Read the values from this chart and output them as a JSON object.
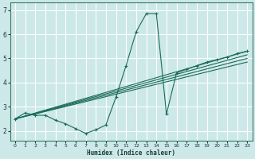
{
  "xlabel": "Humidex (Indice chaleur)",
  "bg_color": "#cce8e8",
  "grid_color": "#ffffff",
  "line_color": "#1a6b5a",
  "xlim": [
    -0.5,
    23.5
  ],
  "ylim": [
    1.6,
    7.3
  ],
  "yticks": [
    2,
    3,
    4,
    5,
    6,
    7
  ],
  "xticks": [
    0,
    1,
    2,
    3,
    4,
    5,
    6,
    7,
    8,
    9,
    10,
    11,
    12,
    13,
    14,
    15,
    16,
    17,
    18,
    19,
    20,
    21,
    22,
    23
  ],
  "series1_x": [
    0,
    1,
    2,
    3,
    4,
    5,
    6,
    7,
    8,
    9,
    10,
    11,
    12,
    13,
    14,
    15,
    16,
    17,
    18,
    19,
    20,
    21,
    22,
    23
  ],
  "series1_y": [
    2.5,
    2.75,
    2.65,
    2.65,
    2.45,
    2.3,
    2.1,
    1.9,
    2.05,
    2.25,
    3.4,
    4.7,
    6.1,
    6.85,
    6.85,
    2.7,
    4.4,
    4.55,
    4.7,
    4.85,
    4.95,
    5.05,
    5.2,
    5.3
  ],
  "lines": [
    {
      "x0": 0.0,
      "y0": 2.5,
      "x1": 23,
      "y1": 5.3
    },
    {
      "x0": 0.0,
      "y0": 2.5,
      "x1": 23,
      "y1": 5.15
    },
    {
      "x0": 0.0,
      "y0": 2.5,
      "x1": 23,
      "y1": 5.0
    },
    {
      "x0": 0.0,
      "y0": 2.5,
      "x1": 23,
      "y1": 4.85
    }
  ]
}
